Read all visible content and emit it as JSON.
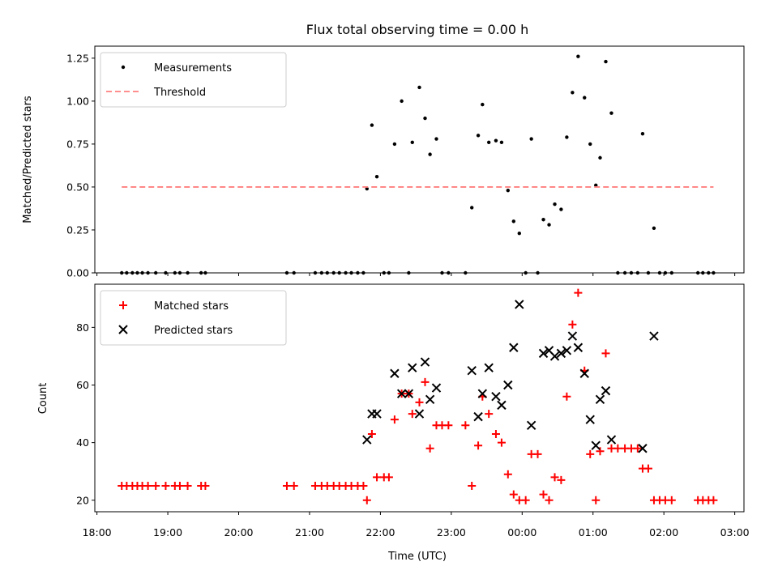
{
  "chart_data": {
    "title": "Flux total observing time = 0.00 h",
    "xlabel": "Time (UTC)",
    "x_unit": "hours",
    "x_tick_labels": [
      "18:00",
      "19:00",
      "20:00",
      "21:00",
      "22:00",
      "23:00",
      "00:00",
      "01:00",
      "02:00",
      "03:00"
    ],
    "x_ticks": [
      18,
      19,
      20,
      21,
      22,
      23,
      24,
      25,
      26,
      27
    ],
    "xlim": [
      17.97,
      27.13
    ],
    "panels": [
      {
        "type": "scatter",
        "ylabel": "Matched/Predicted stars",
        "ylim": [
          0,
          1.32
        ],
        "y_ticks": [
          0.0,
          0.25,
          0.5,
          0.75,
          1.0,
          1.25
        ],
        "y_tick_labels": [
          "0.00",
          "0.25",
          "0.50",
          "0.75",
          "1.00",
          "1.25"
        ],
        "legend_position": "top-left",
        "series": [
          {
            "name": "Measurements",
            "color": "#000000",
            "marker": "dot",
            "points": [
              [
                18.35,
                0
              ],
              [
                18.42,
                0
              ],
              [
                18.5,
                0
              ],
              [
                18.57,
                0
              ],
              [
                18.64,
                0
              ],
              [
                18.72,
                0
              ],
              [
                18.83,
                0
              ],
              [
                18.97,
                0
              ],
              [
                19.1,
                0
              ],
              [
                19.17,
                0
              ],
              [
                19.28,
                0
              ],
              [
                19.47,
                0
              ],
              [
                19.53,
                0
              ],
              [
                20.68,
                0
              ],
              [
                20.78,
                0
              ],
              [
                21.08,
                0
              ],
              [
                21.17,
                0
              ],
              [
                21.25,
                0
              ],
              [
                21.34,
                0
              ],
              [
                21.42,
                0
              ],
              [
                21.51,
                0
              ],
              [
                21.59,
                0
              ],
              [
                21.68,
                0
              ],
              [
                21.76,
                0
              ],
              [
                21.81,
                0.49
              ],
              [
                21.88,
                0.86
              ],
              [
                21.95,
                0.56
              ],
              [
                22.05,
                0
              ],
              [
                22.12,
                0
              ],
              [
                22.2,
                0.75
              ],
              [
                22.3,
                1.0
              ],
              [
                22.4,
                0
              ],
              [
                22.45,
                0.76
              ],
              [
                22.55,
                1.08
              ],
              [
                22.63,
                0.9
              ],
              [
                22.7,
                0.69
              ],
              [
                22.79,
                0.78
              ],
              [
                22.87,
                0
              ],
              [
                22.96,
                0
              ],
              [
                23.2,
                0
              ],
              [
                23.29,
                0.38
              ],
              [
                23.38,
                0.8
              ],
              [
                23.44,
                0.98
              ],
              [
                23.53,
                0.76
              ],
              [
                23.63,
                0.77
              ],
              [
                23.71,
                0.76
              ],
              [
                23.8,
                0.48
              ],
              [
                23.88,
                0.3
              ],
              [
                23.96,
                0.23
              ],
              [
                24.05,
                0
              ],
              [
                24.13,
                0.78
              ],
              [
                24.22,
                0
              ],
              [
                24.3,
                0.31
              ],
              [
                24.38,
                0.28
              ],
              [
                24.46,
                0.4
              ],
              [
                24.55,
                0.37
              ],
              [
                24.63,
                0.79
              ],
              [
                24.71,
                1.05
              ],
              [
                24.79,
                1.26
              ],
              [
                24.88,
                1.02
              ],
              [
                24.96,
                0.75
              ],
              [
                25.04,
                0.51
              ],
              [
                25.1,
                0.67
              ],
              [
                25.18,
                1.23
              ],
              [
                25.26,
                0.93
              ],
              [
                25.35,
                0
              ],
              [
                25.45,
                0
              ],
              [
                25.54,
                0
              ],
              [
                25.63,
                0
              ],
              [
                25.7,
                0.81
              ],
              [
                25.78,
                0
              ],
              [
                25.86,
                0.26
              ],
              [
                25.94,
                0
              ],
              [
                26.02,
                0
              ],
              [
                26.11,
                0
              ],
              [
                26.48,
                0
              ],
              [
                26.55,
                0
              ],
              [
                26.63,
                0
              ],
              [
                26.7,
                0
              ]
            ]
          },
          {
            "name": "Threshold",
            "color": "#ff7f7f",
            "style": "dashed",
            "points": [
              [
                18.35,
                0.5
              ],
              [
                26.7,
                0.5
              ]
            ]
          }
        ]
      },
      {
        "type": "scatter",
        "ylabel": "Count",
        "ylim": [
          16,
          95
        ],
        "y_ticks": [
          20,
          40,
          60,
          80
        ],
        "y_tick_labels": [
          "20",
          "40",
          "60",
          "80"
        ],
        "legend_position": "top-left",
        "series": [
          {
            "name": "Matched stars",
            "color": "#ff0000",
            "marker": "plus",
            "points": [
              [
                18.35,
                25
              ],
              [
                18.42,
                25
              ],
              [
                18.5,
                25
              ],
              [
                18.57,
                25
              ],
              [
                18.64,
                25
              ],
              [
                18.72,
                25
              ],
              [
                18.83,
                25
              ],
              [
                18.97,
                25
              ],
              [
                19.1,
                25
              ],
              [
                19.17,
                25
              ],
              [
                19.28,
                25
              ],
              [
                19.47,
                25
              ],
              [
                19.53,
                25
              ],
              [
                20.68,
                25
              ],
              [
                20.78,
                25
              ],
              [
                21.08,
                25
              ],
              [
                21.17,
                25
              ],
              [
                21.25,
                25
              ],
              [
                21.34,
                25
              ],
              [
                21.42,
                25
              ],
              [
                21.51,
                25
              ],
              [
                21.59,
                25
              ],
              [
                21.68,
                25
              ],
              [
                21.76,
                25
              ],
              [
                21.81,
                20
              ],
              [
                21.88,
                43
              ],
              [
                21.95,
                28
              ],
              [
                22.05,
                28
              ],
              [
                22.12,
                28
              ],
              [
                22.2,
                48
              ],
              [
                22.3,
                57
              ],
              [
                22.4,
                57
              ],
              [
                22.45,
                50
              ],
              [
                22.55,
                54
              ],
              [
                22.63,
                61
              ],
              [
                22.7,
                38
              ],
              [
                22.79,
                46
              ],
              [
                22.87,
                46
              ],
              [
                22.96,
                46
              ],
              [
                23.2,
                46
              ],
              [
                23.29,
                25
              ],
              [
                23.38,
                39
              ],
              [
                23.44,
                56
              ],
              [
                23.53,
                50
              ],
              [
                23.63,
                43
              ],
              [
                23.71,
                40
              ],
              [
                23.8,
                29
              ],
              [
                23.88,
                22
              ],
              [
                23.96,
                20
              ],
              [
                24.05,
                20
              ],
              [
                24.13,
                36
              ],
              [
                24.22,
                36
              ],
              [
                24.3,
                22
              ],
              [
                24.38,
                20
              ],
              [
                24.46,
                28
              ],
              [
                24.55,
                27
              ],
              [
                24.63,
                56
              ],
              [
                24.71,
                81
              ],
              [
                24.79,
                92
              ],
              [
                24.88,
                65
              ],
              [
                24.96,
                36
              ],
              [
                25.04,
                20
              ],
              [
                25.1,
                37
              ],
              [
                25.18,
                71
              ],
              [
                25.26,
                38
              ],
              [
                25.35,
                38
              ],
              [
                25.45,
                38
              ],
              [
                25.54,
                38
              ],
              [
                25.63,
                38
              ],
              [
                25.7,
                31
              ],
              [
                25.78,
                31
              ],
              [
                25.86,
                20
              ],
              [
                25.94,
                20
              ],
              [
                26.02,
                20
              ],
              [
                26.11,
                20
              ],
              [
                26.48,
                20
              ],
              [
                26.55,
                20
              ],
              [
                26.63,
                20
              ],
              [
                26.7,
                20
              ]
            ]
          },
          {
            "name": "Predicted stars",
            "color": "#000000",
            "marker": "x",
            "points": [
              [
                21.81,
                41
              ],
              [
                21.88,
                50
              ],
              [
                21.95,
                50
              ],
              [
                22.2,
                64
              ],
              [
                22.3,
                57
              ],
              [
                22.4,
                57
              ],
              [
                22.45,
                66
              ],
              [
                22.55,
                50
              ],
              [
                22.63,
                68
              ],
              [
                22.7,
                55
              ],
              [
                22.79,
                59
              ],
              [
                23.29,
                65
              ],
              [
                23.38,
                49
              ],
              [
                23.44,
                57
              ],
              [
                23.53,
                66
              ],
              [
                23.63,
                56
              ],
              [
                23.71,
                53
              ],
              [
                23.8,
                60
              ],
              [
                23.88,
                73
              ],
              [
                23.96,
                88
              ],
              [
                24.13,
                46
              ],
              [
                24.3,
                71
              ],
              [
                24.38,
                72
              ],
              [
                24.46,
                70
              ],
              [
                24.55,
                71
              ],
              [
                24.63,
                72
              ],
              [
                24.71,
                77
              ],
              [
                24.79,
                73
              ],
              [
                24.88,
                64
              ],
              [
                24.96,
                48
              ],
              [
                25.04,
                39
              ],
              [
                25.1,
                55
              ],
              [
                25.18,
                58
              ],
              [
                25.26,
                41
              ],
              [
                25.7,
                38
              ],
              [
                25.86,
                77
              ]
            ]
          }
        ]
      }
    ]
  }
}
